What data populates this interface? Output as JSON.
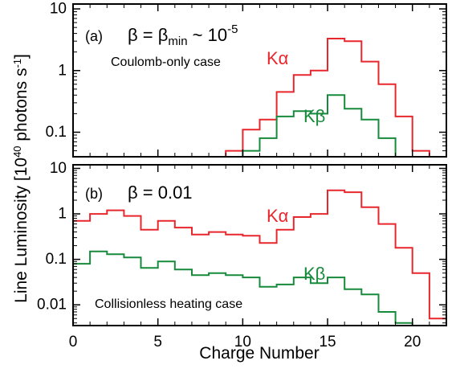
{
  "figure": {
    "ylabel_main": "Line Luminosity [10",
    "ylabel_exp": "40",
    "ylabel_unit": " photons s",
    "ylabel_unit_exp": "-1",
    "ylabel_close": "]",
    "xlabel": "Charge Number"
  },
  "colors": {
    "ka": "#e8272d",
    "kb": "#178a3c",
    "axis": "#000000"
  },
  "chart_data": [
    {
      "type": "line",
      "step": true,
      "panel": "a",
      "panel_label": "(a)",
      "beta_text": {
        "beta1": "β = β",
        "sub": "min",
        "mid": " ~ 10",
        "sup": "-5"
      },
      "case_label": "Coulomb-only case",
      "xlim": [
        0,
        22
      ],
      "ylim": [
        0.04,
        12
      ],
      "yscale": "log",
      "yticks": [
        0.1,
        1,
        10
      ],
      "ytick_labels": [
        "0.1",
        "1",
        "10"
      ],
      "series": [
        {
          "name": "Kα",
          "color": "#e8272d",
          "x": [
            8.5,
            9.5,
            10.5,
            11.5,
            12.5,
            13.5,
            14.5,
            15.5,
            16.5,
            17.5,
            18.5,
            19.5,
            20.5,
            21.5
          ],
          "values": [
            0.01,
            0.05,
            0.11,
            0.16,
            0.45,
            0.85,
            1.0,
            3.3,
            3.0,
            1.4,
            0.6,
            0.18,
            0.05,
            0.01
          ]
        },
        {
          "name": "Kβ",
          "color": "#178a3c",
          "x": [
            9.5,
            10.5,
            11.5,
            12.5,
            13.5,
            14.5,
            15.5,
            16.5,
            17.5,
            18.5,
            19.5
          ],
          "values": [
            0.04,
            0.05,
            0.08,
            0.18,
            0.22,
            0.2,
            0.4,
            0.24,
            0.16,
            0.08,
            0.04
          ]
        }
      ]
    },
    {
      "type": "line",
      "step": true,
      "panel": "b",
      "panel_label": "(b)",
      "beta_text": {
        "beta1": "β = 0.01"
      },
      "case_label": "Collisionless heating case",
      "xlim": [
        0,
        22
      ],
      "ylim": [
        0.0035,
        12
      ],
      "yscale": "log",
      "yticks": [
        0.01,
        0.1,
        1,
        10
      ],
      "ytick_labels": [
        "0.01",
        "0.1",
        "1",
        "10"
      ],
      "xticks": [
        0,
        5,
        10,
        15,
        20
      ],
      "xtick_labels": [
        "0",
        "5",
        "10",
        "15",
        "20"
      ],
      "series": [
        {
          "name": "Kα",
          "color": "#e8272d",
          "x": [
            0.5,
            1.5,
            2.5,
            3.5,
            4.5,
            5.5,
            6.5,
            7.5,
            8.5,
            9.5,
            10.5,
            11.5,
            12.5,
            13.5,
            14.5,
            15.5,
            16.5,
            17.5,
            18.5,
            19.5,
            20.5,
            21.5
          ],
          "values": [
            0.7,
            1.0,
            1.2,
            0.9,
            0.45,
            0.7,
            0.5,
            0.35,
            0.4,
            0.35,
            0.33,
            0.23,
            0.45,
            0.85,
            1.0,
            3.3,
            3.0,
            1.4,
            0.6,
            0.18,
            0.05,
            0.005
          ]
        },
        {
          "name": "Kβ",
          "color": "#178a3c",
          "x": [
            0.5,
            1.5,
            2.5,
            3.5,
            4.5,
            5.5,
            6.5,
            7.5,
            8.5,
            9.5,
            10.5,
            11.5,
            12.5,
            13.5,
            14.5,
            15.5,
            16.5,
            17.5,
            18.5,
            19.5
          ],
          "values": [
            0.08,
            0.15,
            0.13,
            0.11,
            0.065,
            0.09,
            0.06,
            0.045,
            0.05,
            0.045,
            0.04,
            0.025,
            0.028,
            0.04,
            0.03,
            0.04,
            0.022,
            0.017,
            0.007,
            0.004
          ]
        }
      ]
    }
  ]
}
